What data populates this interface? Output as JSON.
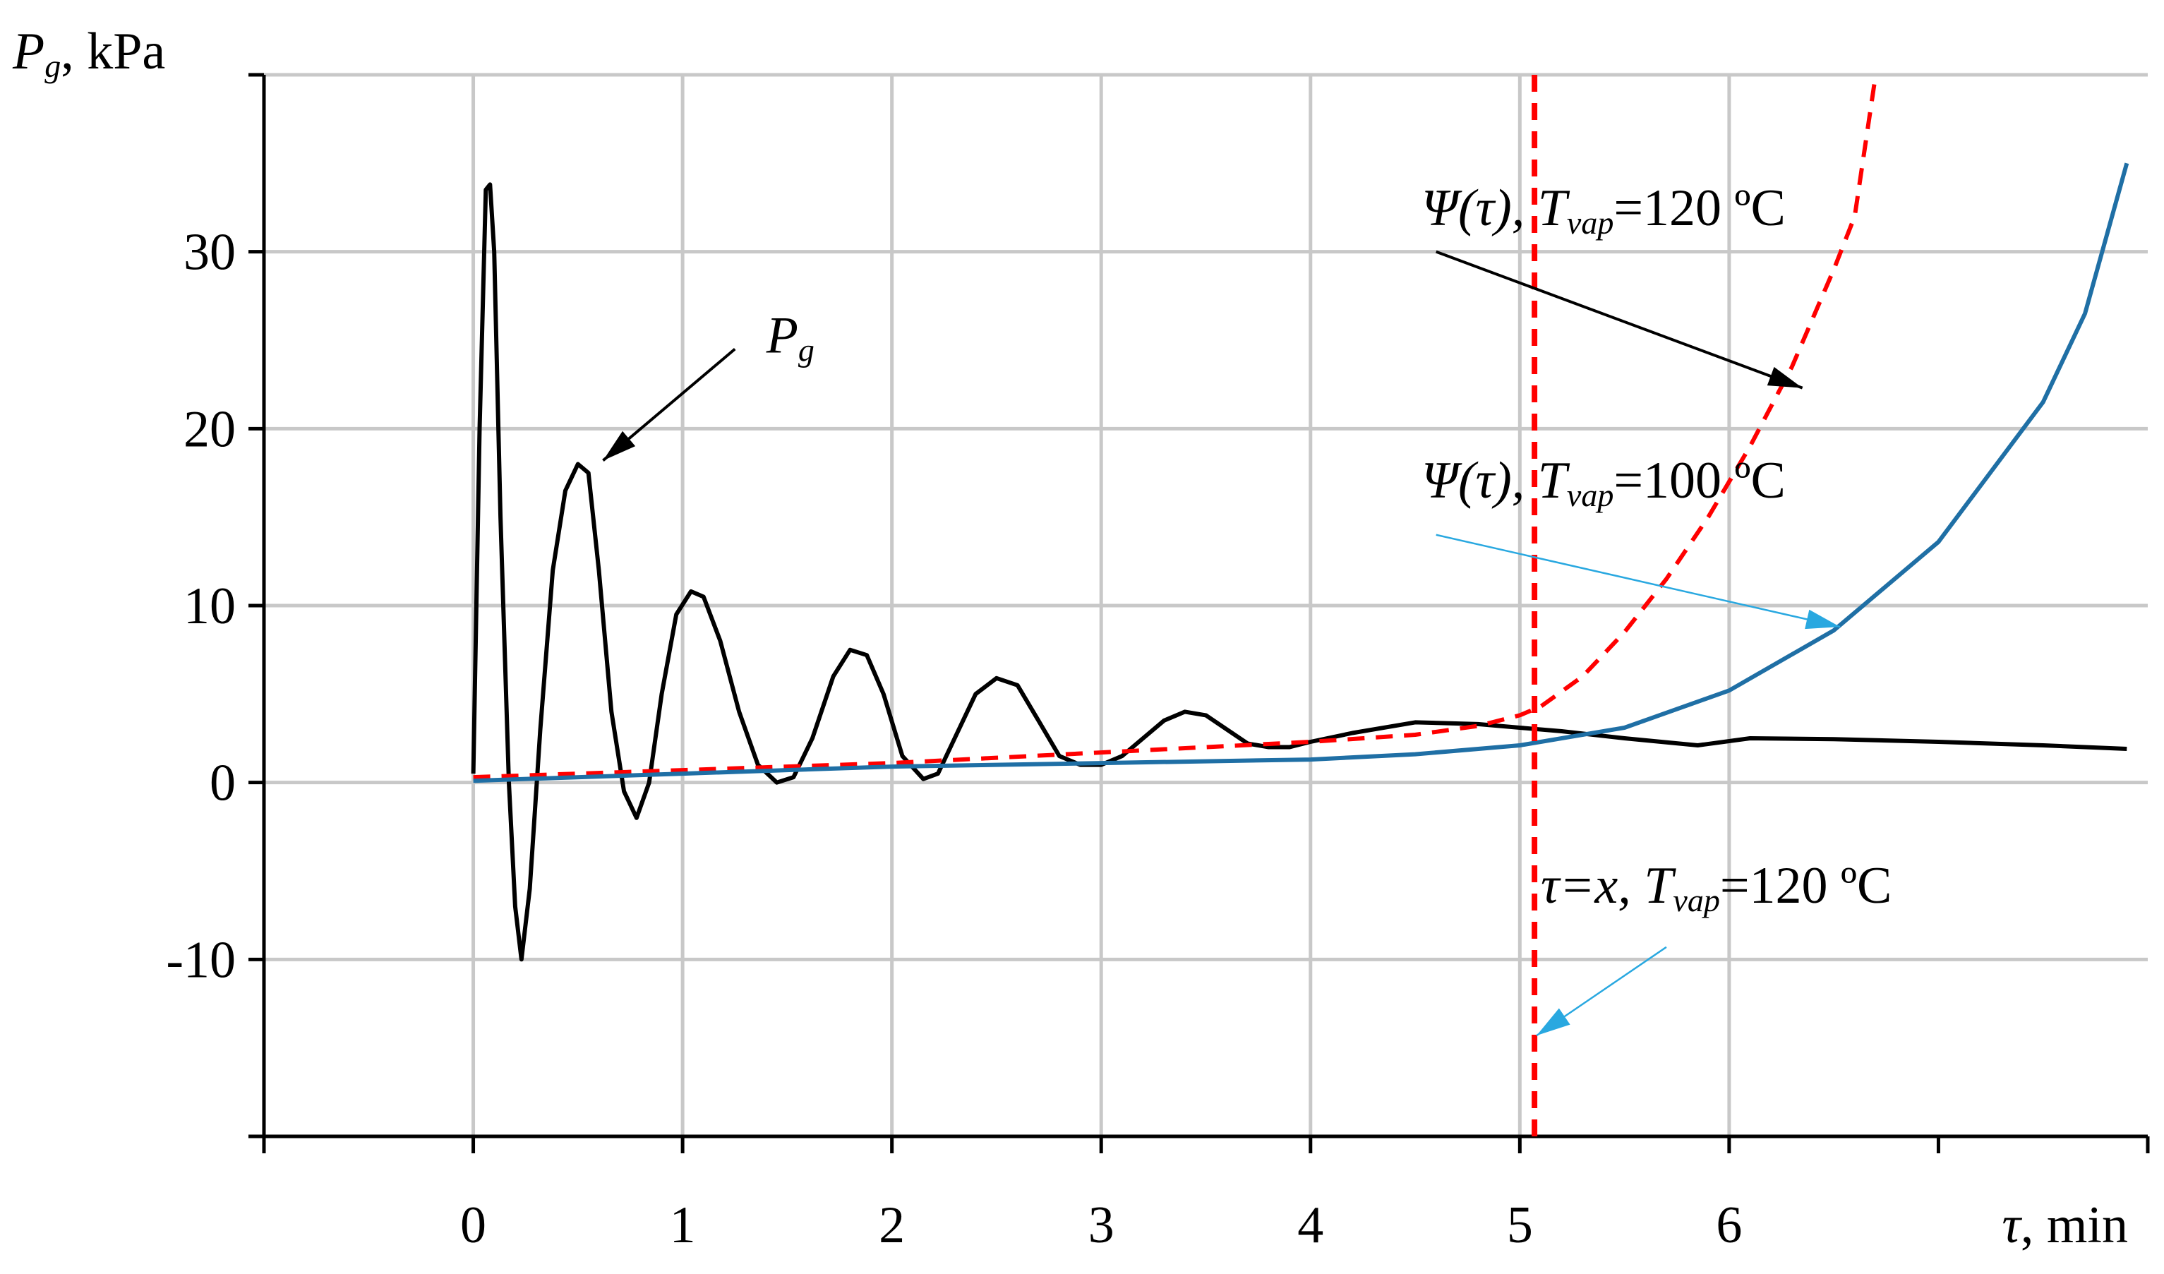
{
  "chart_data": {
    "type": "line",
    "title": "",
    "ylabel": {
      "symbol": "P",
      "subscript": "g",
      "unit": ", kPa"
    },
    "xlabel": {
      "symbol": "τ",
      "unit": ", min"
    },
    "xlim": [
      -1,
      8
    ],
    "ylim": [
      -20,
      40
    ],
    "x_ticks": [
      0,
      1,
      2,
      3,
      4,
      5,
      6
    ],
    "x_tick_marks": [
      -1,
      0,
      1,
      2,
      3,
      4,
      5,
      6,
      7,
      8
    ],
    "y_ticks": [
      -10,
      0,
      10,
      20,
      30
    ],
    "y_tick_marks": [
      -20,
      -10,
      0,
      10,
      20,
      30,
      40
    ],
    "grid": true,
    "series": [
      {
        "key": "pg",
        "color": "#000000",
        "dash": "none",
        "x": [
          0.0,
          0.03,
          0.06,
          0.08,
          0.1,
          0.13,
          0.17,
          0.2,
          0.23,
          0.27,
          0.32,
          0.38,
          0.44,
          0.5,
          0.55,
          0.6,
          0.66,
          0.72,
          0.78,
          0.84,
          0.9,
          0.97,
          1.04,
          1.1,
          1.18,
          1.27,
          1.36,
          1.45,
          1.53,
          1.62,
          1.72,
          1.8,
          1.88,
          1.96,
          2.05,
          2.15,
          2.22,
          2.3,
          2.4,
          2.5,
          2.6,
          2.7,
          2.8,
          2.9,
          3.0,
          3.1,
          3.2,
          3.3,
          3.4,
          3.5,
          3.6,
          3.7,
          3.8,
          3.9,
          4.0,
          4.2,
          4.5,
          4.8,
          5.0,
          5.2,
          5.5,
          5.85,
          6.1,
          6.5,
          7.0,
          7.5,
          7.9
        ],
        "y": [
          0.5,
          20,
          33.5,
          33.8,
          30,
          15,
          0,
          -7,
          -10,
          -6,
          3,
          12,
          16.5,
          18,
          17.5,
          12,
          4,
          -0.5,
          -2,
          0,
          5,
          9.5,
          10.8,
          10.5,
          8,
          4,
          1,
          0,
          0.3,
          2.5,
          6,
          7.5,
          7.2,
          5,
          1.5,
          0.2,
          0.5,
          2.5,
          5,
          5.9,
          5.5,
          3.5,
          1.5,
          1,
          1,
          1.5,
          2.5,
          3.5,
          4,
          3.8,
          3,
          2.2,
          2,
          2,
          2.3,
          2.8,
          3.4,
          3.3,
          3.1,
          2.9,
          2.5,
          2.1,
          2.5,
          2.45,
          2.3,
          2.1,
          1.9
        ]
      },
      {
        "key": "psi120",
        "color": "#ff0000",
        "dash": "24 16",
        "x": [
          0.0,
          1.0,
          2.0,
          3.0,
          4.0,
          4.5,
          4.8,
          5.0,
          5.1,
          5.3,
          5.5,
          5.7,
          5.9,
          6.1,
          6.3,
          6.5,
          6.6,
          6.7
        ],
        "y": [
          0.3,
          0.7,
          1.1,
          1.7,
          2.3,
          2.7,
          3.2,
          3.8,
          4.3,
          6,
          8.5,
          11.5,
          15,
          19,
          23.5,
          29,
          32,
          40
        ]
      },
      {
        "key": "psi100",
        "color": "#1f6fa5",
        "dash": "none",
        "x": [
          0.0,
          1.0,
          2.0,
          3.0,
          4.0,
          4.5,
          5.0,
          5.5,
          6.0,
          6.5,
          7.0,
          7.5,
          7.7,
          7.9
        ],
        "y": [
          0.1,
          0.5,
          0.9,
          1.1,
          1.3,
          1.6,
          2.1,
          3.1,
          5.2,
          8.6,
          13.6,
          21.5,
          26.5,
          35
        ]
      },
      {
        "key": "tau_x",
        "color": "#ff0000",
        "dash": "24 16",
        "x": [
          5.07,
          5.07
        ],
        "y": [
          40,
          -20
        ]
      }
    ],
    "annotations": [
      {
        "key": "pg_label",
        "symbol": "P",
        "subscript": "g",
        "rest": "",
        "text_at": [
          1.4,
          24.3
        ],
        "arrow_from": [
          1.25,
          24.5
        ],
        "arrow_to": [
          0.62,
          18.2
        ],
        "arrow_color": "#000000"
      },
      {
        "key": "psi120_label",
        "symbol": "Ψ(τ), T",
        "subscript": "vap",
        "rest": "=120 ºC",
        "text_at": [
          4.53,
          31.5
        ],
        "arrow_from": [
          4.6,
          30.0
        ],
        "arrow_to": [
          6.35,
          22.3
        ],
        "arrow_color": "#000000"
      },
      {
        "key": "psi100_label",
        "symbol": "Ψ(τ), T",
        "subscript": "vap",
        "rest": "=100 ºC",
        "text_at": [
          4.53,
          16.1
        ],
        "arrow_from": [
          4.6,
          14.0
        ],
        "arrow_to": [
          6.53,
          8.8
        ],
        "arrow_color": "#29a8e0"
      },
      {
        "key": "tau_x_label",
        "symbol": "τ=x, T",
        "subscript": "vap",
        "rest": "=120 ºC",
        "text_at": [
          5.1,
          -6.8
        ],
        "arrow_from": [
          5.7,
          -9.3
        ],
        "arrow_to": [
          5.08,
          -14.3
        ],
        "arrow_color": "#29a8e0"
      }
    ]
  }
}
